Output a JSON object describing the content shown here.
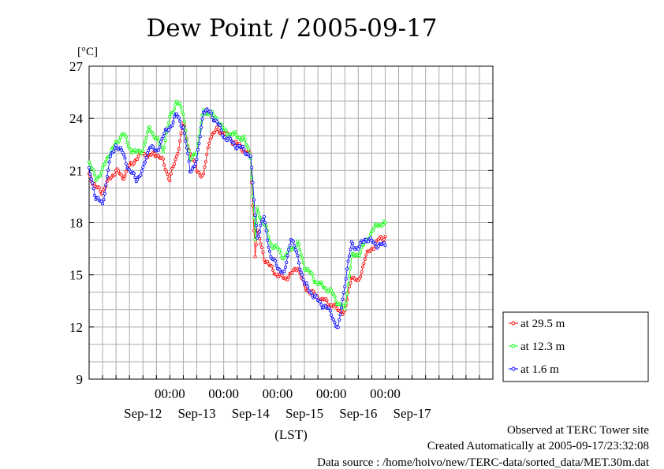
{
  "chart_data": {
    "type": "line",
    "title": "Dew Point / 2005-09-17",
    "ylabel": "[°C]",
    "xlabel": "(LST)",
    "ylim": [
      9,
      27
    ],
    "y_ticks": [
      9,
      12,
      15,
      18,
      21,
      24,
      27
    ],
    "x_tick_labels": [
      "00:00",
      "00:00",
      "00:00",
      "00:00",
      "00:00"
    ],
    "x_date_labels": [
      "Sep-12",
      "Sep-13",
      "Sep-14",
      "Sep-15",
      "Sep-16",
      "Sep-17"
    ],
    "x_range_hours": [
      -12,
      168
    ],
    "grid": true,
    "legend_position": "right",
    "series": [
      {
        "name": "at 29.5 m",
        "color": "#ff0000",
        "points": [
          [
            -12,
            20.8
          ],
          [
            -9,
            20.0
          ],
          [
            -6,
            19.8
          ],
          [
            -3,
            20.5
          ],
          [
            0,
            21.0
          ],
          [
            3,
            20.6
          ],
          [
            6,
            21.2
          ],
          [
            9,
            21.7
          ],
          [
            12,
            22.0
          ],
          [
            15,
            21.8
          ],
          [
            18,
            22.0
          ],
          [
            21,
            21.5
          ],
          [
            24,
            20.5
          ],
          [
            27,
            21.8
          ],
          [
            30,
            23.7
          ],
          [
            33,
            22.0
          ],
          [
            36,
            21.0
          ],
          [
            39,
            20.7
          ],
          [
            42,
            23.0
          ],
          [
            45,
            23.3
          ],
          [
            48,
            23.2
          ],
          [
            51,
            22.8
          ],
          [
            54,
            22.5
          ],
          [
            57,
            22.2
          ],
          [
            60,
            21.8
          ],
          [
            62,
            16.2
          ],
          [
            63,
            17.5
          ],
          [
            66,
            16.0
          ],
          [
            69,
            15.4
          ],
          [
            72,
            15.0
          ],
          [
            75,
            14.8
          ],
          [
            78,
            15.0
          ],
          [
            81,
            15.5
          ],
          [
            84,
            14.3
          ],
          [
            87,
            14.0
          ],
          [
            90,
            13.7
          ],
          [
            93,
            13.5
          ],
          [
            96,
            13.3
          ],
          [
            99,
            13.0
          ],
          [
            102,
            12.8
          ],
          [
            105,
            15.0
          ],
          [
            108,
            14.5
          ],
          [
            111,
            16.0
          ],
          [
            114,
            16.5
          ],
          [
            117,
            17.0
          ],
          [
            120,
            17.2
          ]
        ]
      },
      {
        "name": "at 12.3 m",
        "color": "#00ff00",
        "points": [
          [
            -12,
            21.5
          ],
          [
            -9,
            20.5
          ],
          [
            -6,
            21.0
          ],
          [
            -3,
            22.0
          ],
          [
            0,
            22.5
          ],
          [
            3,
            23.2
          ],
          [
            6,
            22.3
          ],
          [
            9,
            22.0
          ],
          [
            12,
            22.2
          ],
          [
            15,
            23.5
          ],
          [
            18,
            22.8
          ],
          [
            21,
            22.2
          ],
          [
            24,
            24.0
          ],
          [
            27,
            25.0
          ],
          [
            30,
            24.3
          ],
          [
            33,
            21.5
          ],
          [
            36,
            22.2
          ],
          [
            39,
            24.4
          ],
          [
            42,
            24.3
          ],
          [
            45,
            24.0
          ],
          [
            48,
            23.3
          ],
          [
            51,
            23.1
          ],
          [
            54,
            23.0
          ],
          [
            57,
            22.8
          ],
          [
            60,
            21.9
          ],
          [
            62,
            17.0
          ],
          [
            63,
            18.7
          ],
          [
            66,
            18.0
          ],
          [
            69,
            16.8
          ],
          [
            72,
            16.5
          ],
          [
            75,
            16.0
          ],
          [
            78,
            16.5
          ],
          [
            81,
            16.8
          ],
          [
            84,
            15.5
          ],
          [
            87,
            15.0
          ],
          [
            90,
            14.5
          ],
          [
            93,
            14.3
          ],
          [
            96,
            14.0
          ],
          [
            99,
            13.4
          ],
          [
            102,
            13.0
          ],
          [
            105,
            16.0
          ],
          [
            108,
            16.2
          ],
          [
            111,
            16.8
          ],
          [
            114,
            17.5
          ],
          [
            117,
            17.9
          ],
          [
            120,
            18.0
          ]
        ]
      },
      {
        "name": "at 1.6 m",
        "color": "#0000ff",
        "points": [
          [
            -12,
            21.0
          ],
          [
            -9,
            19.5
          ],
          [
            -6,
            19.0
          ],
          [
            -3,
            21.5
          ],
          [
            0,
            22.5
          ],
          [
            3,
            22.0
          ],
          [
            6,
            21.0
          ],
          [
            9,
            20.5
          ],
          [
            12,
            21.0
          ],
          [
            15,
            22.5
          ],
          [
            18,
            22.0
          ],
          [
            21,
            23.0
          ],
          [
            24,
            23.5
          ],
          [
            27,
            24.2
          ],
          [
            30,
            23.5
          ],
          [
            33,
            21.0
          ],
          [
            36,
            21.5
          ],
          [
            39,
            24.5
          ],
          [
            42,
            24.3
          ],
          [
            45,
            23.8
          ],
          [
            48,
            23.0
          ],
          [
            51,
            22.7
          ],
          [
            54,
            22.4
          ],
          [
            57,
            22.2
          ],
          [
            60,
            21.8
          ],
          [
            62,
            18.5
          ],
          [
            63,
            17.2
          ],
          [
            66,
            18.3
          ],
          [
            69,
            16.0
          ],
          [
            72,
            15.5
          ],
          [
            75,
            15.0
          ],
          [
            78,
            17.2
          ],
          [
            81,
            16.0
          ],
          [
            84,
            14.5
          ],
          [
            87,
            14.0
          ],
          [
            90,
            13.5
          ],
          [
            93,
            13.2
          ],
          [
            96,
            12.8
          ],
          [
            99,
            11.8
          ],
          [
            102,
            14.5
          ],
          [
            105,
            16.8
          ],
          [
            108,
            16.5
          ],
          [
            111,
            17.1
          ],
          [
            114,
            16.9
          ],
          [
            117,
            16.7
          ],
          [
            120,
            16.7
          ]
        ]
      }
    ]
  },
  "footer": {
    "line1": "Observed at TERC Tower site",
    "line2": "Created Automatically at 2005-09-17/23:32:08",
    "line3": "Data source : /home/hoivo/new/TERC-data/sorted_data/MET.30m.dat"
  }
}
